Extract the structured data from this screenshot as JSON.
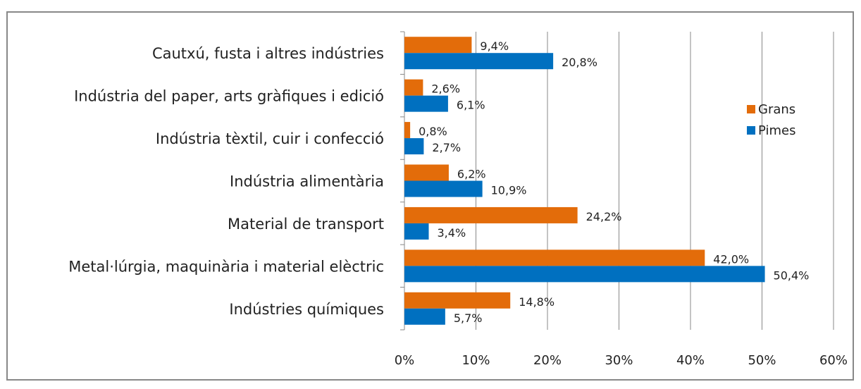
{
  "chart_data": {
    "type": "hbar",
    "categories": [
      "Cautxú, fusta i altres indústries",
      "Indústria del paper, arts gràfiques i edició",
      "Indústria tèxtil, cuir i confecció",
      "Indústria alimentària",
      "Material de transport",
      "Metal·lúrgia, maquinària i material elèctric",
      "Indústries químiques"
    ],
    "series": [
      {
        "name": "Grans",
        "color": "#e36c0a",
        "values": [
          9.4,
          2.6,
          0.8,
          6.2,
          24.2,
          42.0,
          14.8
        ],
        "value_labels": [
          "9,4%",
          "2,6%",
          "0,8%",
          "6,2%",
          "24,2%",
          "42,0%",
          "14,8%"
        ]
      },
      {
        "name": "Pimes",
        "color": "#0070c0",
        "values": [
          20.8,
          6.1,
          2.7,
          10.9,
          3.4,
          50.4,
          5.7
        ],
        "value_labels": [
          "20,8%",
          "6,1%",
          "2,7%",
          "10,9%",
          "3,4%",
          "50,4%",
          "5,7%"
        ]
      }
    ],
    "xlim": [
      0,
      60
    ],
    "xticks": [
      {
        "value": 0,
        "label": "0%"
      },
      {
        "value": 10,
        "label": "10%"
      },
      {
        "value": 20,
        "label": "20%"
      },
      {
        "value": 30,
        "label": "30%"
      },
      {
        "value": 40,
        "label": "40%"
      },
      {
        "value": 50,
        "label": "50%"
      },
      {
        "value": 60,
        "label": "60%"
      }
    ],
    "grid": true,
    "legend": "right"
  }
}
